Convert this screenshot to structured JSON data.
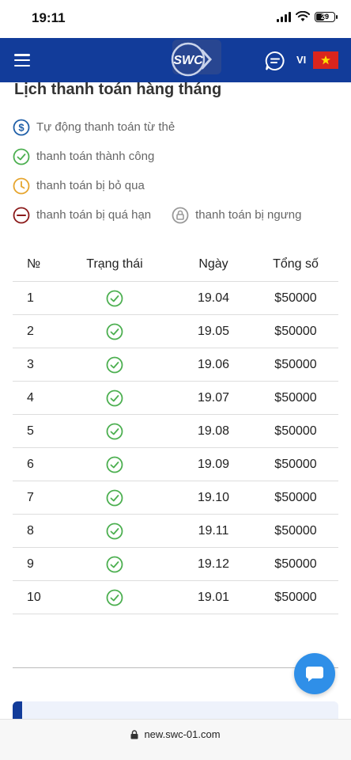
{
  "status_bar": {
    "time": "19:11",
    "battery": "29"
  },
  "navbar": {
    "logo_text": "SWC",
    "language": "VI"
  },
  "page": {
    "title": "Lịch thanh toán hàng tháng",
    "legend": {
      "auto": "Tự động thanh toán từ thẻ",
      "success": "thanh toán thành công",
      "skipped": "thanh toán bị bỏ qua",
      "overdue": "thanh toán bị quá hạn",
      "suspended": "thanh toán bị ngưng"
    },
    "legend_colors": {
      "auto": "#1f5fa8",
      "success": "#4caf50",
      "skipped": "#e6a52e",
      "overdue": "#8b1a1a",
      "suspended": "#999999"
    },
    "table": {
      "headers": [
        "№",
        "Trạng thái",
        "Ngày",
        "Tổng số"
      ],
      "rows": [
        {
          "no": "1",
          "status": "success",
          "date": "19.04",
          "amount": "$50000"
        },
        {
          "no": "2",
          "status": "success",
          "date": "19.05",
          "amount": "$50000"
        },
        {
          "no": "3",
          "status": "success",
          "date": "19.06",
          "amount": "$50000"
        },
        {
          "no": "4",
          "status": "success",
          "date": "19.07",
          "amount": "$50000"
        },
        {
          "no": "5",
          "status": "success",
          "date": "19.08",
          "amount": "$50000"
        },
        {
          "no": "6",
          "status": "success",
          "date": "19.09",
          "amount": "$50000"
        },
        {
          "no": "7",
          "status": "success",
          "date": "19.10",
          "amount": "$50000"
        },
        {
          "no": "8",
          "status": "success",
          "date": "19.11",
          "amount": "$50000"
        },
        {
          "no": "9",
          "status": "success",
          "date": "19.12",
          "amount": "$50000"
        },
        {
          "no": "10",
          "status": "success",
          "date": "19.01",
          "amount": "$50000"
        }
      ]
    }
  },
  "browser": {
    "url": "new.swc-01.com"
  },
  "colors": {
    "nav": "#123c9a",
    "accent": "#2f8fe8",
    "success": "#4caf50"
  }
}
